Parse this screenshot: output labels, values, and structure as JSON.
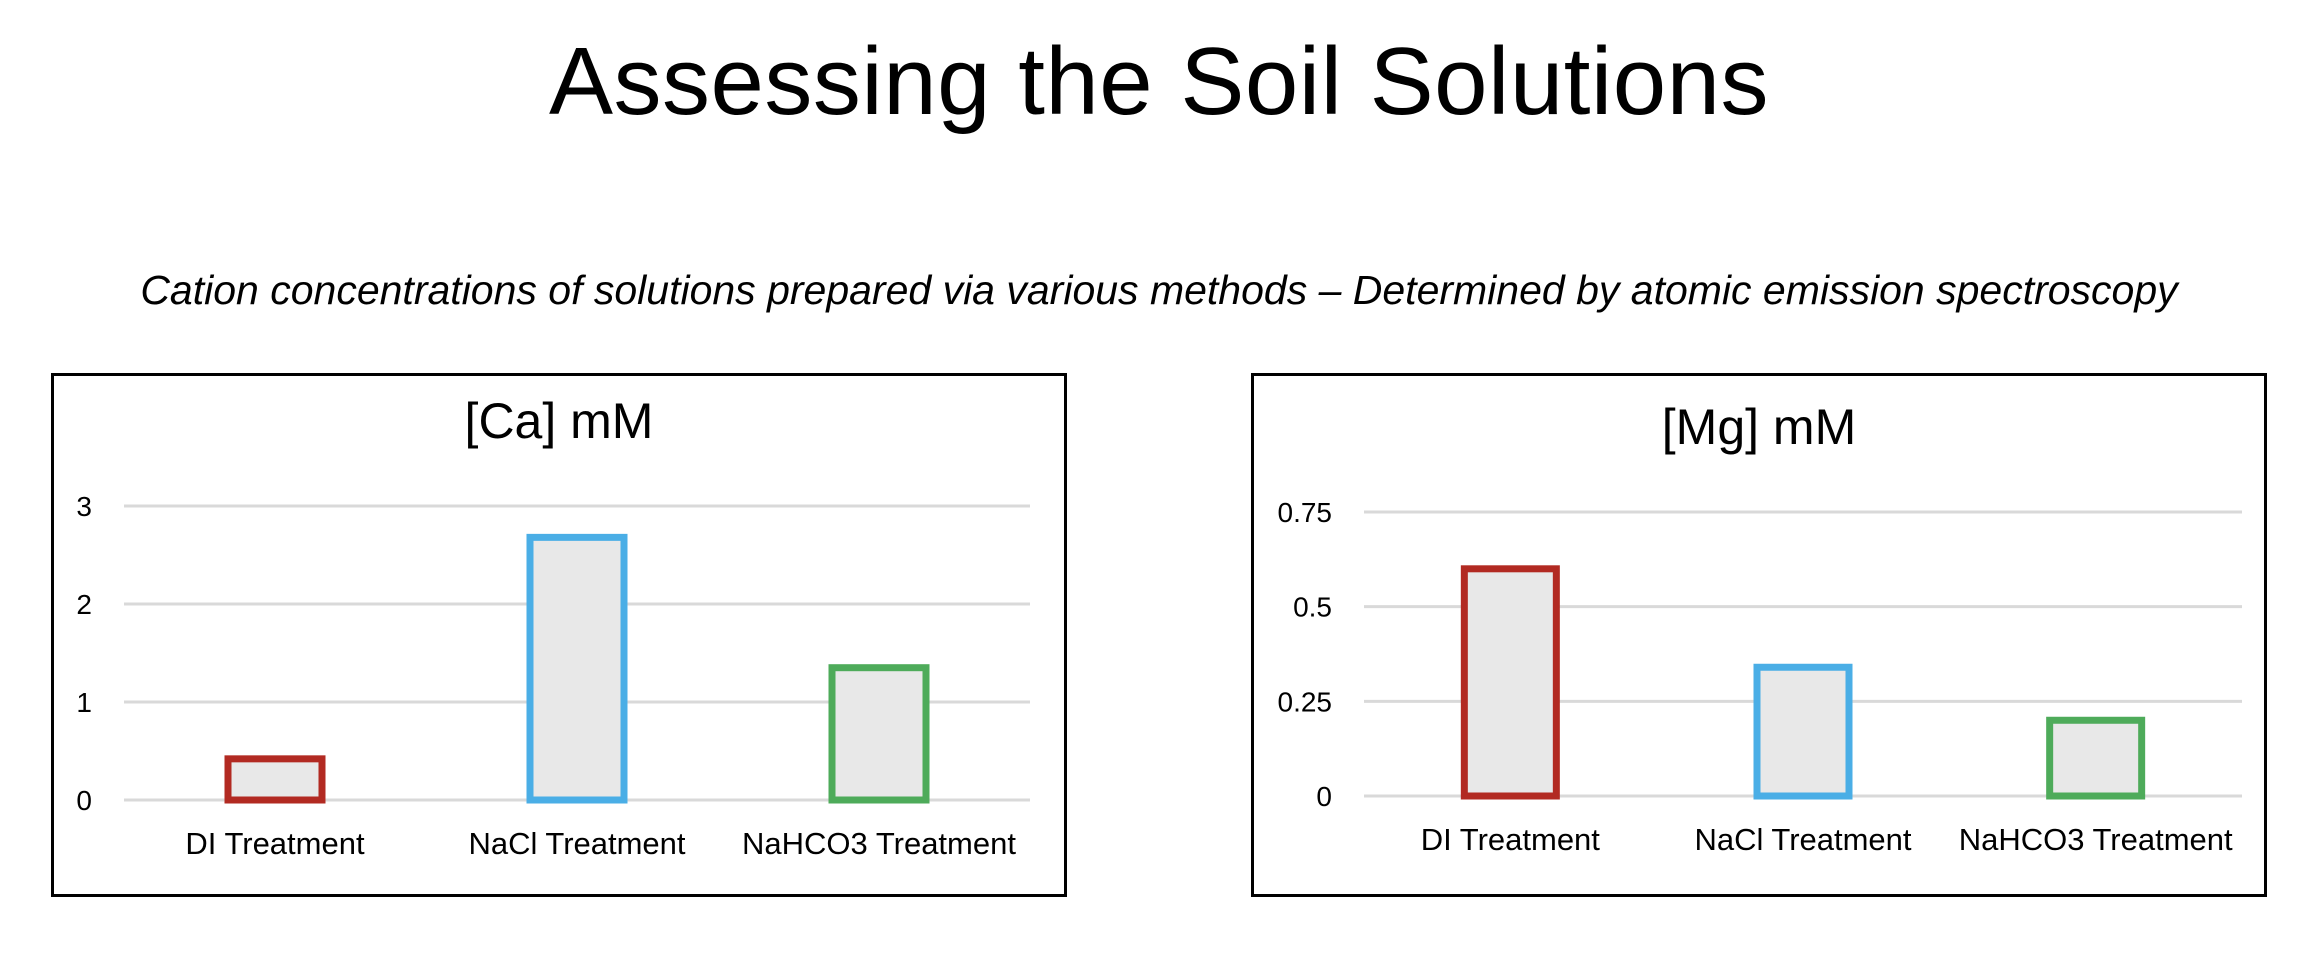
{
  "slide": {
    "title": "Assessing the Soil Solutions",
    "subtitle": "Cation concentrations of solutions prepared via various methods – Determined by atomic emission spectroscopy"
  },
  "colors": {
    "bar_fill": "#e8e8e8",
    "gridline": "#d9d9d9",
    "series": [
      "#b22a22",
      "#4aaee6",
      "#4eab5a"
    ]
  },
  "chart_data": [
    {
      "type": "bar",
      "title": "[Ca] mM",
      "categories": [
        "DI Treatment",
        "NaCl Treatment",
        "NaHCO3 Treatment"
      ],
      "values": [
        0.42,
        2.68,
        1.35
      ],
      "ylim": [
        0,
        3
      ],
      "yticks": [
        0,
        1,
        2,
        3
      ],
      "ytick_labels": [
        "0",
        "1",
        "2",
        "3"
      ],
      "xlabel": "",
      "ylabel": "",
      "grid": true,
      "legend": "none"
    },
    {
      "type": "bar",
      "title": "[Mg] mM",
      "categories": [
        "DI Treatment",
        "NaCl Treatment",
        "NaHCO3 Treatment"
      ],
      "values": [
        0.6,
        0.34,
        0.2
      ],
      "ylim": [
        0,
        0.75
      ],
      "yticks": [
        0,
        0.25,
        0.5,
        0.75
      ],
      "ytick_labels": [
        "0",
        "0.25",
        "0.5",
        "0.75"
      ],
      "xlabel": "",
      "ylabel": "",
      "grid": true,
      "legend": "none"
    }
  ]
}
